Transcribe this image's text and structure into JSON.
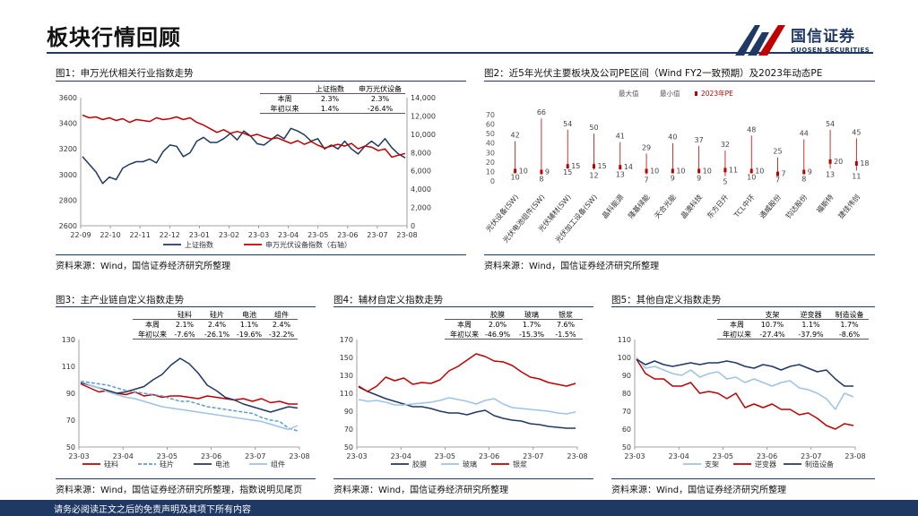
{
  "page": {
    "title": "板块行情回顾",
    "logo_cn": "国信证券",
    "logo_en": "GUOSEN SECURITIES",
    "footer": "请务必阅读正文之后的免责声明及其项下所有内容"
  },
  "colors": {
    "navy": "#1f3864",
    "red": "#c00000",
    "lightblue": "#9dc3e6",
    "midblue": "#5b9bd5"
  },
  "panels": {
    "p1": {
      "title": "图1：申万光伏相关行业指数走势",
      "source": "资料来源：Wind，国信证券经济研究所整理"
    },
    "p2": {
      "title": "图2：近5年光伏主要板块及公司PE区间（Wind FY2一致预期）及2023年动态PE",
      "source": "资料来源：Wind，国信证券经济研究所整理"
    },
    "p3": {
      "title": "图3：主产业链自定义指数走势",
      "source": "资料来源：Wind，国信证券经济研究所整理，指数说明见尾页"
    },
    "p4": {
      "title": "图4：辅材自定义指数走势",
      "source": "资料来源：Wind，国信证券经济研究所整理"
    },
    "p5": {
      "title": "图5：其他自定义指数走势",
      "source": "资料来源：Wind，国信证券经济研究所整理"
    }
  },
  "chart_data": [
    {
      "id": "fig1",
      "type": "line",
      "x_ticks": [
        "22-09",
        "22-10",
        "22-11",
        "22-12",
        "23-01",
        "23-02",
        "23-03",
        "23-04",
        "23-05",
        "23-06",
        "23-07",
        "23-08"
      ],
      "ylim_left": [
        2600,
        3600
      ],
      "yticks_left": [
        "3600",
        "3400",
        "3200",
        "3000",
        "2800",
        "2600"
      ],
      "ylim_right": [
        0,
        14000
      ],
      "yticks_right": [
        "14,000",
        "12,000",
        "10,000",
        "8,000",
        "6,000",
        "4,000",
        "2,000",
        "0"
      ],
      "table": {
        "headers": [
          "",
          "上证指数",
          "申万光伏设备"
        ],
        "rows": [
          [
            "本周",
            "2.3%",
            "2.3%"
          ],
          [
            "年初以来",
            "1.4%",
            "-26.4%"
          ]
        ]
      },
      "series": [
        {
          "name": "上证指数",
          "axis": "left",
          "color": "#1f3864",
          "values": [
            3140,
            3080,
            3020,
            2930,
            2980,
            2960,
            3050,
            3080,
            3100,
            3100,
            3120,
            3090,
            3180,
            3230,
            3220,
            3140,
            3170,
            3260,
            3290,
            3250,
            3250,
            3280,
            3320,
            3270,
            3340,
            3300,
            3240,
            3230,
            3270,
            3310,
            3280,
            3360,
            3340,
            3310,
            3260,
            3280,
            3200,
            3230,
            3200,
            3260,
            3200,
            3160,
            3220,
            3260,
            3220,
            3280,
            3210,
            3160,
            3130
          ]
        },
        {
          "name": "申万光伏设备指数（右轴）",
          "axis": "right",
          "color": "#c00000",
          "values": [
            12100,
            11800,
            11900,
            11600,
            11800,
            11500,
            11700,
            11300,
            11600,
            11500,
            11400,
            11800,
            11600,
            11700,
            11900,
            11600,
            11800,
            11300,
            11000,
            10600,
            10200,
            10500,
            10100,
            10300,
            10100,
            9800,
            10000,
            9700,
            9500,
            9600,
            9300,
            9000,
            9300,
            8900,
            9200,
            8800,
            8500,
            8700,
            8900,
            8700,
            9000,
            8400,
            8700,
            8600,
            8200,
            8400,
            7500,
            7700,
            7900
          ]
        }
      ]
    },
    {
      "id": "fig2",
      "type": "range",
      "ylim": [
        0,
        70
      ],
      "yticks": [
        "70",
        "60",
        "50",
        "40",
        "30",
        "20",
        "10",
        "0"
      ],
      "legend": [
        "最大值",
        "最小值",
        "2023年PE"
      ],
      "categories": [
        "光伏设备(SW)",
        "光伏电池组件(SW)",
        "光伏辅材(SW)",
        "光伏加工设备(SW)",
        "晶科能源",
        "隆基绿能",
        "天合光能",
        "晶澳科技",
        "东方日升",
        "TCL中环",
        "通威股份",
        "钧达股份",
        "福斯特",
        "捷佳伟创"
      ],
      "max": [
        42,
        66,
        54,
        50,
        41,
        29,
        40,
        37,
        32,
        48,
        25,
        44,
        54,
        45
      ],
      "min": [
        10,
        8,
        15,
        12,
        13,
        7,
        9,
        9,
        5,
        10,
        7,
        8,
        13,
        11
      ],
      "pe": [
        10,
        9,
        15,
        15,
        14,
        10,
        10,
        10,
        11,
        10,
        7,
        9,
        20,
        18
      ]
    },
    {
      "id": "fig3",
      "type": "line",
      "x_ticks": [
        "23-03",
        "23-04",
        "23-05",
        "23-06",
        "23-07",
        "23-08"
      ],
      "ylim": [
        50,
        130
      ],
      "yticks": [
        "130",
        "110",
        "90",
        "70",
        "50"
      ],
      "table": {
        "headers": [
          "",
          "硅料",
          "硅片",
          "电池",
          "组件"
        ],
        "rows": [
          [
            "本周",
            "2.1%",
            "2.4%",
            "1.1%",
            "2.4%"
          ],
          [
            "年初以来",
            "-7.6%",
            "-26.1%",
            "-19.6%",
            "-32.2%"
          ]
        ]
      },
      "series": [
        {
          "name": "硅料",
          "color": "#c00000",
          "dash": "",
          "values": [
            97,
            94,
            91,
            92,
            90,
            89,
            91,
            88,
            89,
            87,
            88,
            88,
            87,
            86,
            88,
            87,
            86,
            85,
            86,
            84,
            86,
            83,
            84,
            82,
            82
          ]
        },
        {
          "name": "硅片",
          "color": "#5b9bd5",
          "dash": "4,2",
          "values": [
            99,
            98,
            97,
            96,
            94,
            92,
            91,
            90,
            89,
            88,
            86,
            84,
            84,
            82,
            80,
            79,
            78,
            77,
            76,
            75,
            72,
            70,
            69,
            64,
            62
          ]
        },
        {
          "name": "电池",
          "color": "#1f3864",
          "dash": "",
          "values": [
            98,
            96,
            94,
            92,
            90,
            91,
            93,
            95,
            100,
            104,
            111,
            116,
            112,
            105,
            96,
            92,
            87,
            85,
            82,
            80,
            78,
            76,
            78,
            80,
            79
          ]
        },
        {
          "name": "组件",
          "color": "#9dc3e6",
          "dash": "",
          "values": [
            99,
            96,
            94,
            91,
            89,
            87,
            86,
            84,
            82,
            80,
            79,
            78,
            77,
            76,
            75,
            74,
            73,
            72,
            71,
            70,
            69,
            67,
            65,
            63,
            66
          ]
        }
      ]
    },
    {
      "id": "fig4",
      "type": "line",
      "x_ticks": [
        "23-03",
        "23-04",
        "23-05",
        "23-06",
        "23-07",
        "23-08"
      ],
      "ylim": [
        50,
        170
      ],
      "yticks": [
        "170",
        "150",
        "130",
        "110",
        "90",
        "70",
        "50"
      ],
      "table": {
        "headers": [
          "",
          "胶膜",
          "玻璃",
          "银浆"
        ],
        "rows": [
          [
            "本周",
            "2.0%",
            "1.7%",
            "7.6%"
          ],
          [
            "年初以来",
            "-46.9%",
            "-15.3%",
            "-1.5%"
          ]
        ]
      },
      "series": [
        {
          "name": "胶膜",
          "color": "#1f3864",
          "values": [
            117,
            112,
            108,
            104,
            101,
            98,
            95,
            95,
            93,
            90,
            88,
            88,
            86,
            89,
            91,
            85,
            82,
            80,
            79,
            76,
            75,
            73,
            72,
            71,
            71
          ]
        },
        {
          "name": "玻璃",
          "color": "#9dc3e6",
          "values": [
            103,
            101,
            102,
            100,
            97,
            97,
            98,
            99,
            100,
            102,
            105,
            103,
            101,
            98,
            102,
            104,
            98,
            94,
            93,
            92,
            91,
            90,
            88,
            87,
            89
          ]
        },
        {
          "name": "银浆",
          "color": "#c00000",
          "values": [
            118,
            112,
            118,
            128,
            124,
            127,
            120,
            122,
            121,
            125,
            135,
            140,
            147,
            154,
            151,
            146,
            145,
            141,
            134,
            128,
            126,
            122,
            120,
            118,
            121
          ]
        }
      ]
    },
    {
      "id": "fig5",
      "type": "line",
      "x_ticks": [
        "23-03",
        "23-04",
        "23-05",
        "23-06",
        "23-07",
        "23-08"
      ],
      "ylim": [
        50,
        110
      ],
      "yticks": [
        "110",
        "100",
        "90",
        "80",
        "70",
        "60",
        "50"
      ],
      "table": {
        "headers": [
          "",
          "支架",
          "逆变器",
          "制造设备"
        ],
        "rows": [
          [
            "本周",
            "10.7%",
            "1.1%",
            "1.7%"
          ],
          [
            "年初以来",
            "-27.4%",
            "-37.9%",
            "-8.6%"
          ]
        ]
      },
      "series": [
        {
          "name": "支架",
          "color": "#9dc3e6",
          "values": [
            100,
            94,
            95,
            93,
            91,
            90,
            93,
            89,
            91,
            92,
            88,
            89,
            86,
            88,
            86,
            84,
            86,
            87,
            83,
            82,
            80,
            77,
            71,
            80,
            78
          ]
        },
        {
          "name": "逆变器",
          "color": "#c00000",
          "values": [
            99,
            91,
            88,
            88,
            84,
            84,
            86,
            80,
            81,
            80,
            77,
            80,
            72,
            74,
            72,
            74,
            71,
            71,
            68,
            69,
            66,
            62,
            60,
            63,
            62
          ]
        },
        {
          "name": "制造设备",
          "color": "#1f3864",
          "values": [
            99,
            96,
            98,
            96,
            95,
            96,
            97,
            96,
            97,
            97,
            98,
            97,
            95,
            94,
            96,
            95,
            93,
            95,
            96,
            94,
            92,
            93,
            88,
            84,
            84
          ]
        }
      ]
    }
  ]
}
